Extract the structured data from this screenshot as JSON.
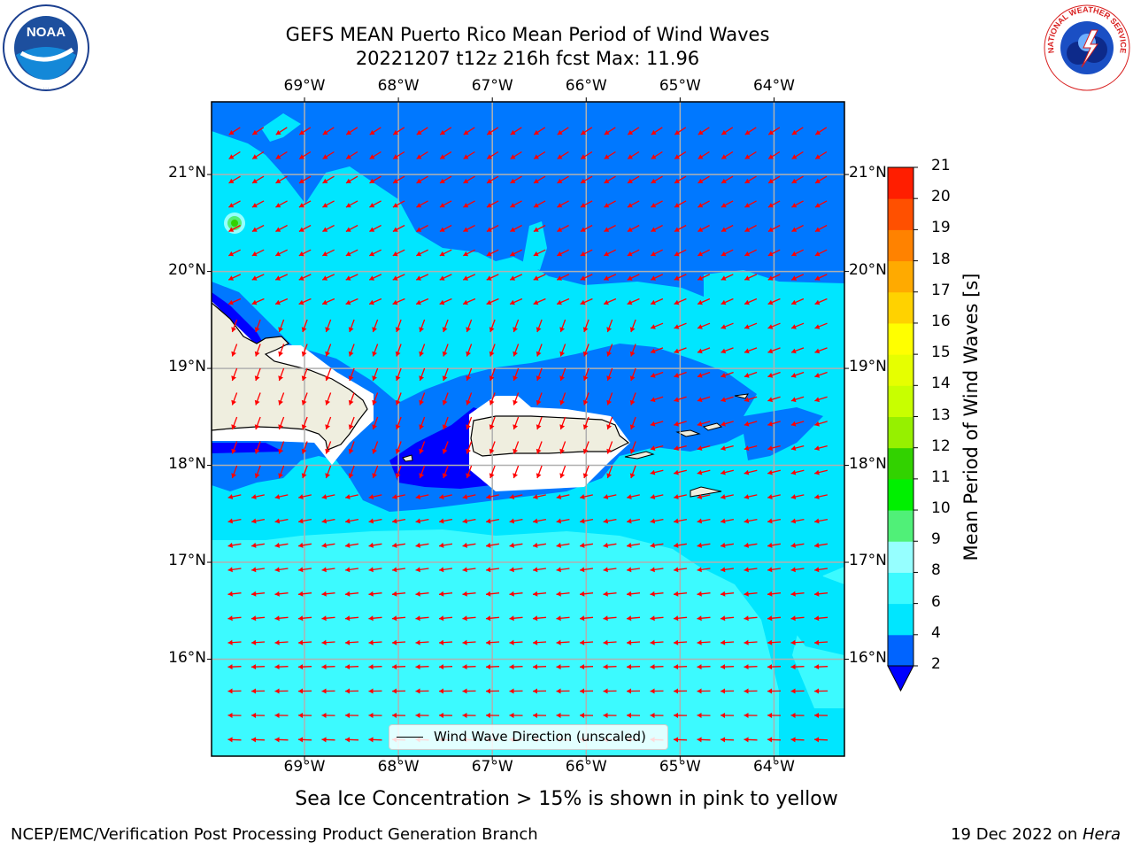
{
  "title": {
    "line1": "GEFS MEAN Puerto Rico Mean Period of Wind Waves",
    "line2": "20221207 t12z 216h fcst   Max: 11.96"
  },
  "map": {
    "lon_labels": [
      "69°W",
      "68°W",
      "67°W",
      "66°W",
      "65°W",
      "64°W"
    ],
    "lat_labels": [
      "21°N",
      "20°N",
      "19°N",
      "18°N",
      "17°N",
      "16°N"
    ],
    "lon_range": [
      -69.99,
      -63.25
    ],
    "lat_range": [
      15.0,
      21.75
    ],
    "land_color": "#efeedf",
    "arrow_color": "#ff0000",
    "grid_color": "#b0b0b0"
  },
  "colorbar": {
    "label": "Mean Period of Wind Waves [s]",
    "ticks": [
      "2",
      "4",
      "6",
      "8",
      "9",
      "10",
      "11",
      "12",
      "13",
      "14",
      "15",
      "16",
      "17",
      "18",
      "19",
      "20",
      "21"
    ],
    "colors": [
      "#0064ff",
      "#00e6ff",
      "#3cfaff",
      "#96ffff",
      "#50f078",
      "#00f000",
      "#32d200",
      "#96f000",
      "#c8ff00",
      "#e6ff00",
      "#ffff00",
      "#ffd200",
      "#ffaa00",
      "#ff8200",
      "#ff5000",
      "#ff1e00",
      "#ff0000"
    ],
    "underflow_color": "#0000ff"
  },
  "legend": {
    "label": "Wind Wave Direction (unscaled)"
  },
  "footer": {
    "note": "Sea Ice Concentration > 15% is shown in pink to yellow",
    "left": "NCEP/EMC/Verification Post Processing Product Generation Branch",
    "right_prefix": "19 Dec 2022 on ",
    "right_host": "Hera"
  },
  "logos": {
    "left_text": "NOAA",
    "left_ring_text": "NATIONAL OCEANIC AND ATMOSPHERIC ADMINISTRATION · U.S. DEPARTMENT OF COMMERCE",
    "right_ring_text": "NATIONAL WEATHER SERVICE"
  }
}
